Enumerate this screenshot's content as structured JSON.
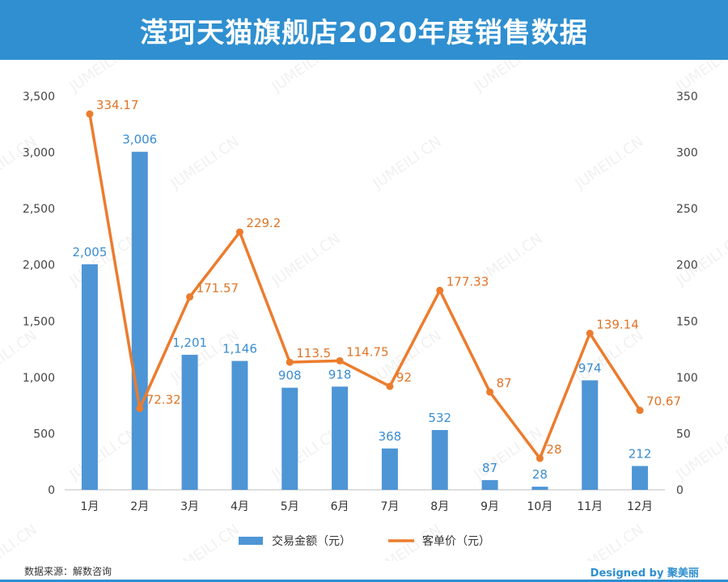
{
  "header": {
    "title": "滢珂天猫旗舰店2020年度销售数据"
  },
  "footer": {
    "source": "数据来源：解数咨询",
    "credit": "Designed by 聚美丽"
  },
  "watermark": "JUMEILI.CN",
  "colors": {
    "header_bg": "#2f8fd0",
    "bar": "#4e95d5",
    "line": "#ec7c2d",
    "bar_label": "#3a8dd0",
    "line_label": "#e07426"
  },
  "chart_data": {
    "type": "bar+line",
    "categories": [
      "1月",
      "2月",
      "3月",
      "4月",
      "5月",
      "6月",
      "7月",
      "8月",
      "9月",
      "10月",
      "11月",
      "12月"
    ],
    "series": [
      {
        "name": "交易金额（元）",
        "type": "bar",
        "axis": "left",
        "values": [
          2005,
          3006,
          1201,
          1146,
          908,
          918,
          368,
          532,
          87,
          28,
          974,
          212
        ],
        "labels": [
          "2,005",
          "3,006",
          "1,201",
          "1,146",
          "908",
          "918",
          "368",
          "532",
          "87",
          "28",
          "974",
          "212"
        ]
      },
      {
        "name": "客单价（元）",
        "type": "line",
        "axis": "right",
        "values": [
          334.17,
          72.32,
          171.57,
          229.2,
          113.5,
          114.75,
          92,
          177.33,
          87,
          28,
          139.14,
          70.67
        ],
        "labels": [
          "334.17",
          "72.32",
          "171.57",
          "229.2",
          "113.5",
          "114.75",
          "92",
          "177.33",
          "87",
          "28",
          "139.14",
          "70.67"
        ]
      }
    ],
    "y_left": {
      "min": 0,
      "max": 3500,
      "ticks": [
        "0",
        "500",
        "1,000",
        "1,500",
        "2,000",
        "2,500",
        "3,000",
        "3,500"
      ]
    },
    "y_right": {
      "min": 0,
      "max": 350,
      "ticks": [
        "0",
        "50",
        "100",
        "150",
        "200",
        "250",
        "300",
        "350"
      ]
    },
    "grid": false,
    "legend_position": "bottom-center"
  }
}
